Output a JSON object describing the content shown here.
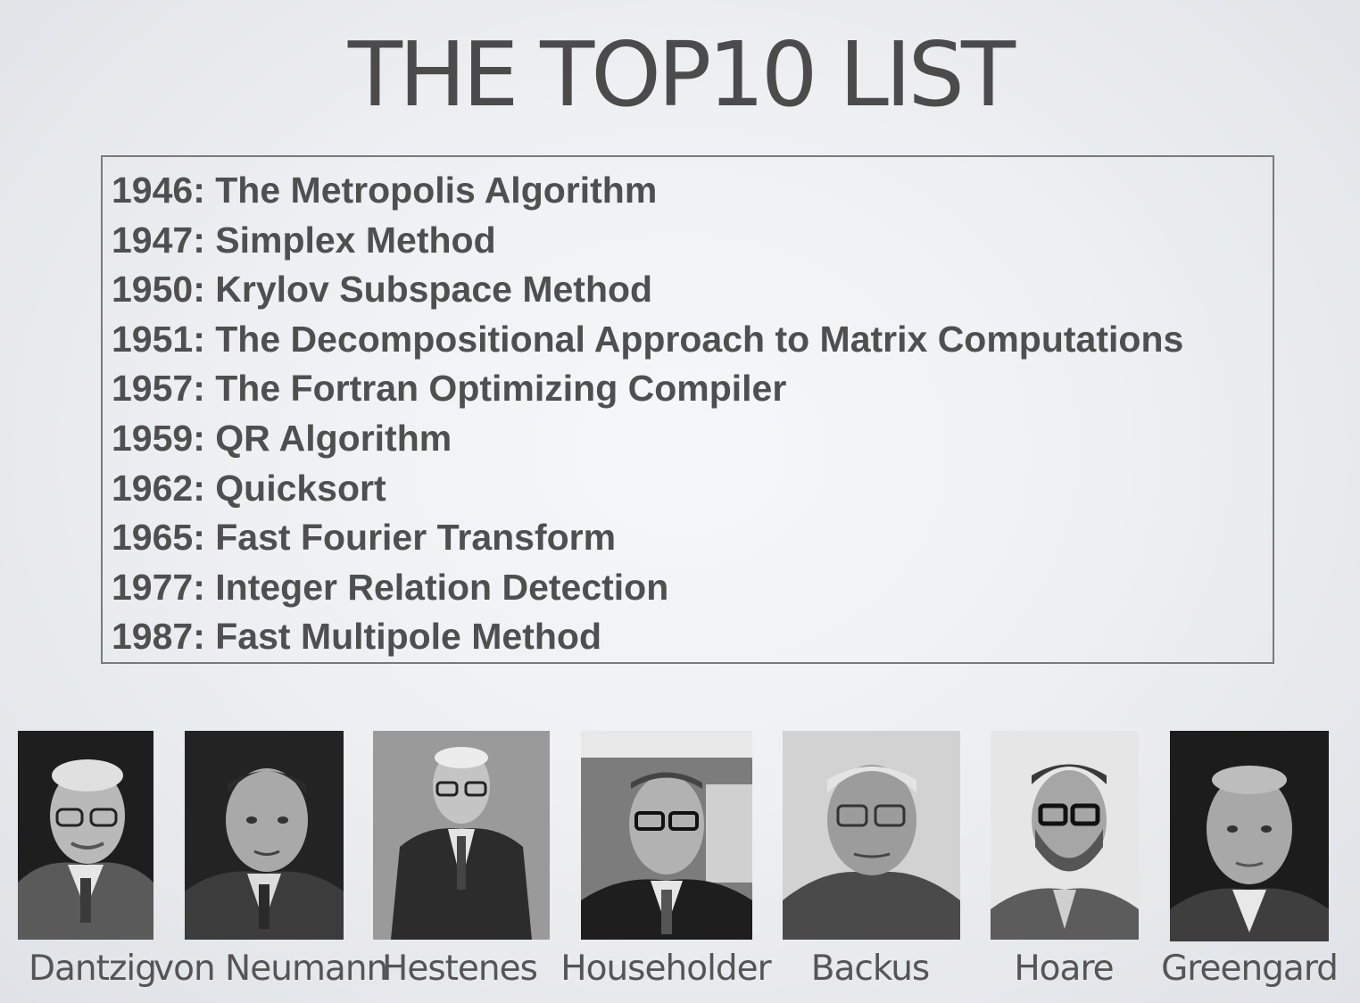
{
  "slide": {
    "title": "THE TOP10 LIST"
  },
  "list": {
    "items": [
      "1946: The Metropolis Algorithm",
      "1947: Simplex Method",
      "1950: Krylov Subspace Method",
      "1951: The Decompositional Approach to Matrix Computations",
      "1957: The Fortran Optimizing Compiler",
      "1959: QR Algorithm",
      "1962: Quicksort",
      "1965: Fast Fourier Transform",
      "1977: Integer Relation Detection",
      "1987: Fast Multipole Method"
    ]
  },
  "people": [
    {
      "name": "Dantzig"
    },
    {
      "name": "von Neumann"
    },
    {
      "name": "Hestenes"
    },
    {
      "name": "Householder"
    },
    {
      "name": "Backus"
    },
    {
      "name": "Hoare"
    },
    {
      "name": "Greengard"
    }
  ]
}
